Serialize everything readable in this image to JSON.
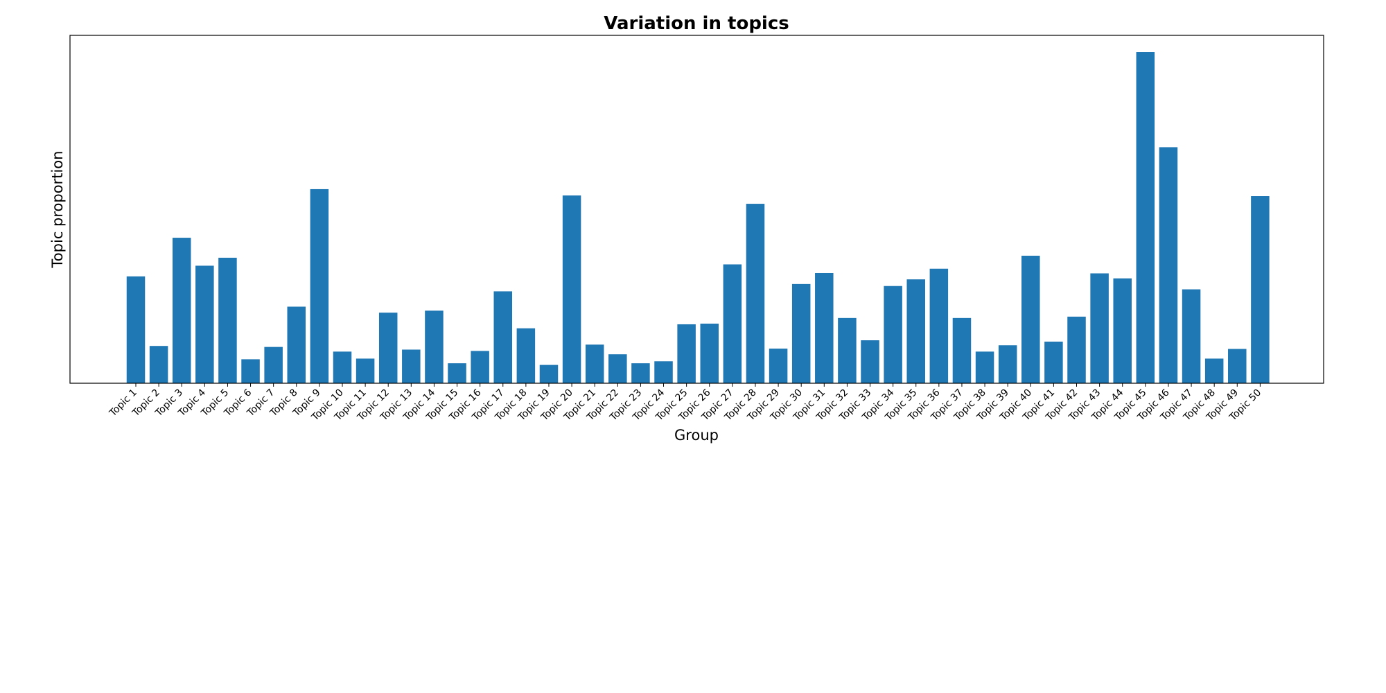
{
  "chart_data": {
    "type": "bar",
    "title": "Variation in topics",
    "xlabel": "Group",
    "ylabel": "Topic proportion",
    "categories": [
      "Topic 1",
      "Topic 2",
      "Topic 3",
      "Topic 4",
      "Topic 5",
      "Topic 6",
      "Topic 7",
      "Topic 8",
      "Topic 9",
      "Topic 10",
      "Topic 11",
      "Topic 12",
      "Topic 13",
      "Topic 14",
      "Topic 15",
      "Topic 16",
      "Topic 17",
      "Topic 18",
      "Topic 19",
      "Topic 20",
      "Topic 21",
      "Topic 22",
      "Topic 23",
      "Topic 24",
      "Topic 25",
      "Topic 26",
      "Topic 27",
      "Topic 28",
      "Topic 29",
      "Topic 30",
      "Topic 31",
      "Topic 32",
      "Topic 33",
      "Topic 34",
      "Topic 35",
      "Topic 36",
      "Topic 37",
      "Topic 38",
      "Topic 39",
      "Topic 40",
      "Topic 41",
      "Topic 42",
      "Topic 43",
      "Topic 44",
      "Topic 45",
      "Topic 46",
      "Topic 47",
      "Topic 48",
      "Topic 49",
      "Topic 50"
    ],
    "values": [
      0.0321,
      0.0112,
      0.0437,
      0.0353,
      0.0377,
      0.0072,
      0.0109,
      0.023,
      0.0583,
      0.0095,
      0.0074,
      0.0212,
      0.0101,
      0.0218,
      0.006,
      0.0097,
      0.0276,
      0.0165,
      0.0055,
      0.0564,
      0.0116,
      0.0087,
      0.006,
      0.0066,
      0.0177,
      0.0179,
      0.0357,
      0.0539,
      0.0104,
      0.0298,
      0.0331,
      0.0196,
      0.0129,
      0.0292,
      0.0312,
      0.0344,
      0.0196,
      0.0095,
      0.0114,
      0.0383,
      0.0125,
      0.02,
      0.033,
      0.0315,
      0.0995,
      0.0709,
      0.0282,
      0.0074,
      0.0103,
      0.0562
    ],
    "ylim": [
      0,
      0.1045
    ],
    "color": "#1f77b4",
    "grid": false,
    "legend": "none"
  }
}
